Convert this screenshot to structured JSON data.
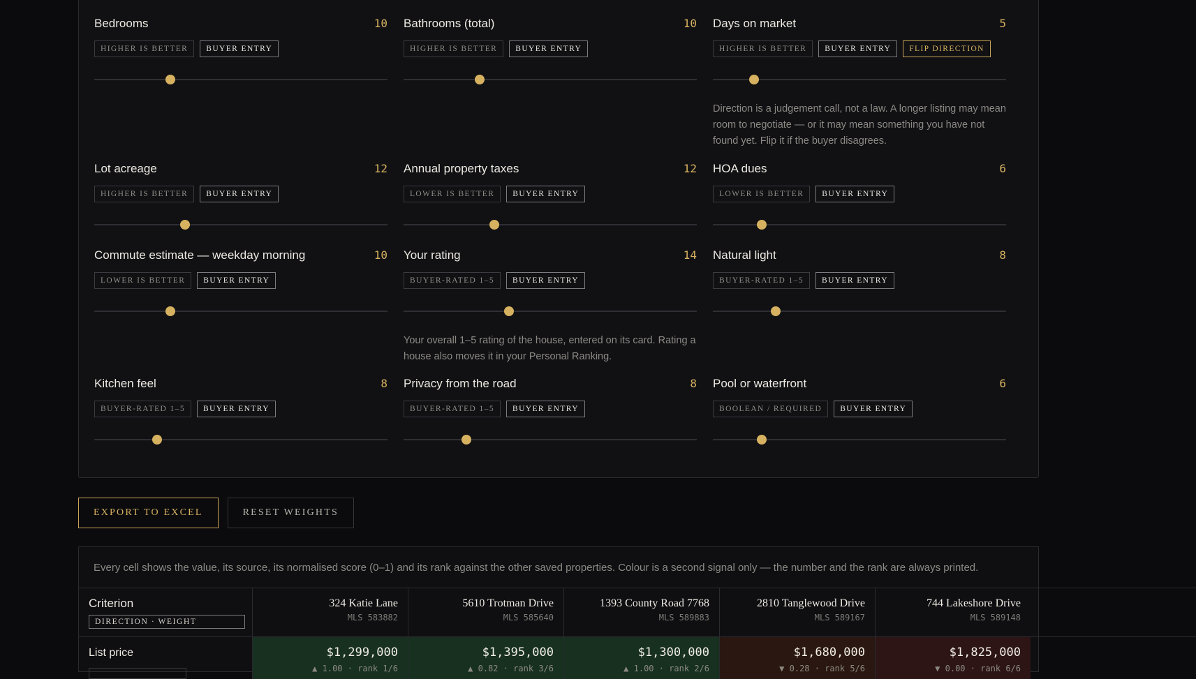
{
  "criteria": [
    {
      "title": "Bedrooms",
      "weight": "10",
      "direction": "HIGHER IS BETTER",
      "entry": "BUYER ENTRY",
      "slider_value": 0.26
    },
    {
      "title": "Bathrooms (total)",
      "weight": "10",
      "direction": "HIGHER IS BETTER",
      "entry": "BUYER ENTRY",
      "slider_value": 0.26
    },
    {
      "title": "Days on market",
      "weight": "5",
      "direction": "HIGHER IS BETTER",
      "entry": "BUYER ENTRY",
      "flip": "FLIP DIRECTION",
      "slider_value": 0.14,
      "note": "Direction is a judgement call, not a law. A longer listing may mean room to negotiate — or it may mean something you have not found yet. Flip it if the buyer disagrees."
    },
    {
      "title": "Lot acreage",
      "weight": "12",
      "direction": "HIGHER IS BETTER",
      "entry": "BUYER ENTRY",
      "slider_value": 0.31
    },
    {
      "title": "Annual property taxes",
      "weight": "12",
      "direction": "LOWER IS BETTER",
      "entry": "BUYER ENTRY",
      "slider_value": 0.31
    },
    {
      "title": "HOA dues",
      "weight": "6",
      "direction": "LOWER IS BETTER",
      "entry": "BUYER ENTRY",
      "slider_value": 0.166
    },
    {
      "title": "Commute estimate — weekday morning",
      "weight": "10",
      "direction": "LOWER IS BETTER",
      "entry": "BUYER ENTRY",
      "slider_value": 0.26
    },
    {
      "title": "Your rating",
      "weight": "14",
      "direction": "BUYER-RATED 1–5",
      "entry": "BUYER ENTRY",
      "slider_value": 0.36,
      "note": "Your overall 1–5 rating of the house, entered on its card. Rating a house also moves it in your Personal Ranking."
    },
    {
      "title": "Natural light",
      "weight": "8",
      "direction": "BUYER-RATED 1–5",
      "entry": "BUYER ENTRY",
      "slider_value": 0.214
    },
    {
      "title": "Kitchen feel",
      "weight": "8",
      "direction": "BUYER-RATED 1–5",
      "entry": "BUYER ENTRY",
      "slider_value": 0.214
    },
    {
      "title": "Privacy from the road",
      "weight": "8",
      "direction": "BUYER-RATED 1–5",
      "entry": "BUYER ENTRY",
      "slider_value": 0.214
    },
    {
      "title": "Pool or waterfront",
      "weight": "6",
      "direction": "BOOLEAN / REQUIRED",
      "entry": "BUYER ENTRY",
      "slider_value": 0.166
    }
  ],
  "actions": {
    "export": "EXPORT TO EXCEL",
    "reset": "RESET WEIGHTS"
  },
  "table": {
    "caption": "Every cell shows the value, its source, its normalised score (0–1) and its rank against the other saved properties. Colour is a second signal only — the number and the rank are always printed.",
    "criterion_header": "Criterion",
    "criterion_sub": "DIRECTION · WEIGHT",
    "properties": [
      {
        "address": "324 Katie Lane",
        "mls": "MLS 583882"
      },
      {
        "address": "5610 Trotman Drive",
        "mls": "MLS 585640"
      },
      {
        "address": "1393 County Road 7768",
        "mls": "MLS 589883"
      },
      {
        "address": "2810 Tanglewood Drive",
        "mls": "MLS 589167"
      },
      {
        "address": "744 Lakeshore Drive",
        "mls": "MLS 589148"
      }
    ],
    "rows": [
      {
        "label": "List price",
        "cells": [
          {
            "value": "$1,299,000",
            "score": "▲ 1.00 · rank 1/6",
            "tone": "good"
          },
          {
            "value": "$1,395,000",
            "score": "▲ 0.82 · rank 3/6",
            "tone": "good"
          },
          {
            "value": "$1,300,000",
            "score": "▲ 1.00 · rank 2/6",
            "tone": "good"
          },
          {
            "value": "$1,680,000",
            "score": "▼ 0.28 · rank 5/6",
            "tone": "bad"
          },
          {
            "value": "$1,825,000",
            "score": "▼ 0.00 · rank 6/6",
            "tone": "worst"
          }
        ]
      }
    ]
  },
  "colors": {
    "accent": "#d6b15f",
    "good_cell": "#17301f",
    "bad_cell": "#2a1712",
    "worst_cell": "#2d1515",
    "panel": "#111114"
  }
}
